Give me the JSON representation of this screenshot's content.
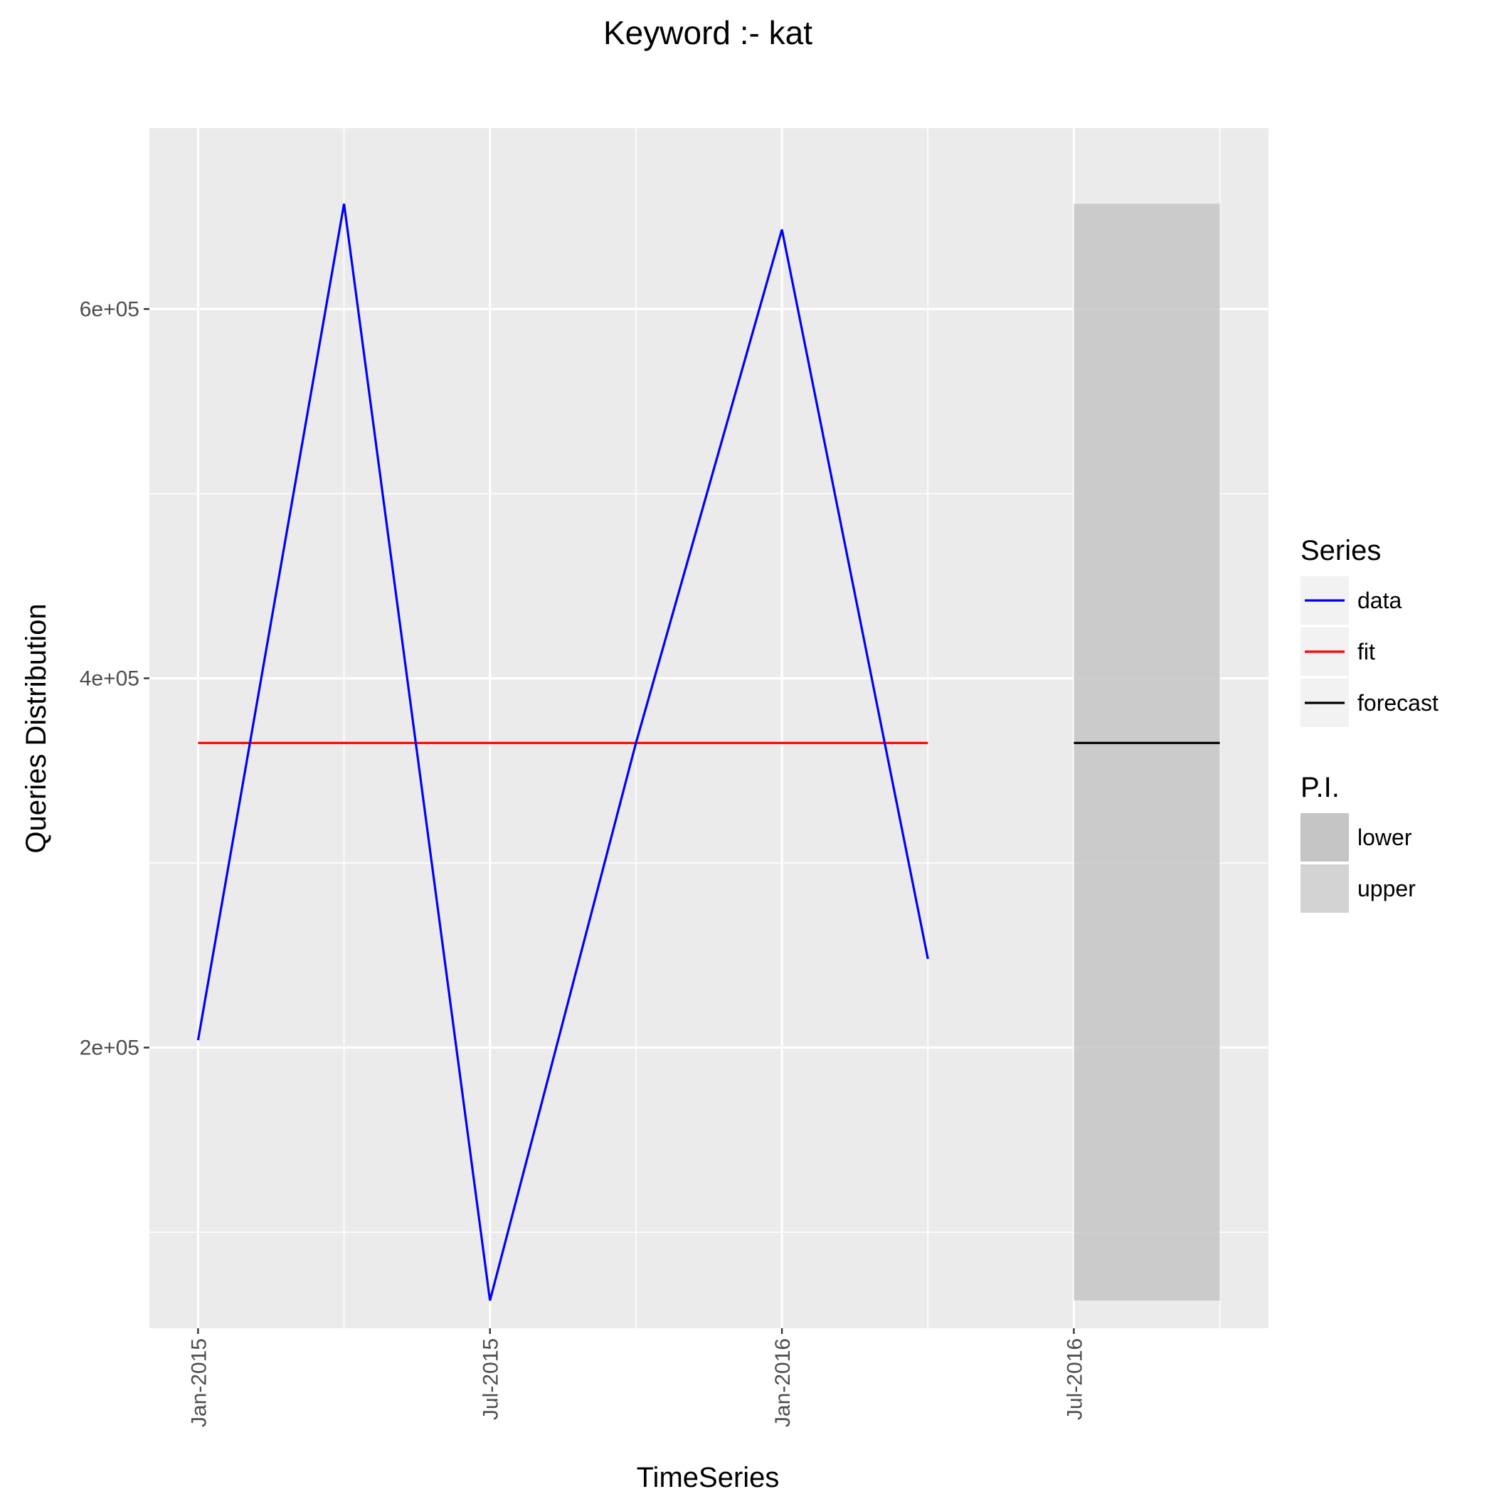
{
  "chart_data": {
    "type": "line",
    "title": "Keyword :- kat",
    "xlabel": "TimeSeries",
    "ylabel": "Queries Distribution",
    "x_tick_labels": [
      {
        "label": "Jan-2015",
        "date": "2015-01"
      },
      {
        "label": "Jul-2015",
        "date": "2015-07"
      },
      {
        "label": "Jan-2016",
        "date": "2016-01"
      },
      {
        "label": "Jul-2016",
        "date": "2016-07"
      }
    ],
    "x_minor_gridlines": [
      "2015-04",
      "2015-10",
      "2016-04",
      "2016-10"
    ],
    "xlim": [
      "2014-12",
      "2016-11"
    ],
    "y_tick_labels": [
      {
        "label": "2e+05",
        "value": 200000
      },
      {
        "label": "4e+05",
        "value": 400000
      },
      {
        "label": "6e+05",
        "value": 600000
      }
    ],
    "ylim": [
      48000,
      698000
    ],
    "grid": true,
    "series": [
      {
        "name": "data",
        "color": "#0000ff",
        "points": [
          {
            "x": "2015-01",
            "y": 204000
          },
          {
            "x": "2015-04",
            "y": 657000
          },
          {
            "x": "2015-07",
            "y": 63000
          },
          {
            "x": "2015-10",
            "y": 365000
          },
          {
            "x": "2016-01",
            "y": 643000
          },
          {
            "x": "2016-04",
            "y": 248000
          }
        ]
      },
      {
        "name": "fit",
        "color": "#ff0000",
        "points": [
          {
            "x": "2015-01",
            "y": 365000
          },
          {
            "x": "2016-04",
            "y": 365000
          }
        ]
      },
      {
        "name": "forecast",
        "color": "#000000",
        "points": [
          {
            "x": "2016-07",
            "y": 365000
          },
          {
            "x": "2016-10",
            "y": 365000
          }
        ]
      }
    ],
    "prediction_interval": {
      "x_start": "2016-07",
      "x_end": "2016-10",
      "lower": 63000,
      "upper": 657000,
      "colors": {
        "lower": "#c5c5c5",
        "upper": "#d3d3d3"
      }
    },
    "legend": {
      "position": "right",
      "series_title": "Series",
      "series_items": [
        {
          "label": "data",
          "color": "#0000ff"
        },
        {
          "label": "fit",
          "color": "#ff0000"
        },
        {
          "label": "forecast",
          "color": "#000000"
        }
      ],
      "pi_title": "P.I.",
      "pi_items": [
        {
          "label": "lower",
          "color": "#c5c5c5"
        },
        {
          "label": "upper",
          "color": "#d3d3d3"
        }
      ]
    }
  }
}
